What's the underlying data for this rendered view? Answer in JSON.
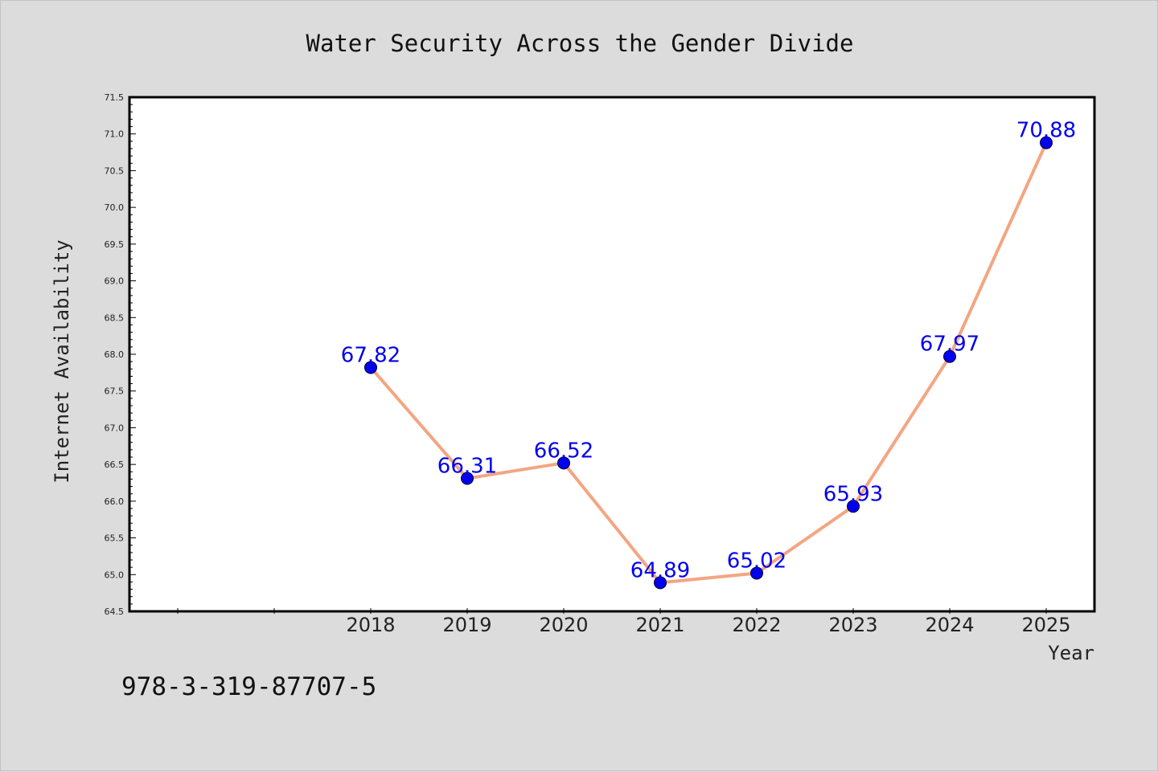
{
  "chart_data": {
    "type": "line",
    "title": "Water Security Across the Gender Divide",
    "xlabel": "Year",
    "ylabel": "Internet Availability",
    "x": [
      "2018",
      "2019",
      "2020",
      "2021",
      "2022",
      "2023",
      "2024",
      "2025"
    ],
    "series": [
      {
        "values": [
          67.82,
          66.31,
          66.52,
          64.89,
          65.02,
          65.93,
          67.97,
          70.88
        ]
      }
    ],
    "data_labels": [
      "67.82",
      "66.31",
      "66.52",
      "64.89",
      "65.02",
      "65.93",
      "67.97",
      "70.88"
    ],
    "ylim": [
      64.5,
      71.5
    ],
    "y_ticks": [
      "64.5",
      "65.0",
      "65.5",
      "66.0",
      "66.5",
      "67.0",
      "67.5",
      "68.0",
      "68.5",
      "69.0",
      "69.5",
      "70.0",
      "70.5",
      "71.0",
      "71.5"
    ],
    "x_slots": 10,
    "x_first_data_slot": 2,
    "grid": false,
    "legend": "none",
    "colors": {
      "line": "#f4a582",
      "marker": "#0000ee",
      "label": "#0000ee",
      "background": "#dcdcdc",
      "plot_background": "#ffffff"
    }
  },
  "annotation": {
    "isbn": "978-3-319-87707-5"
  }
}
